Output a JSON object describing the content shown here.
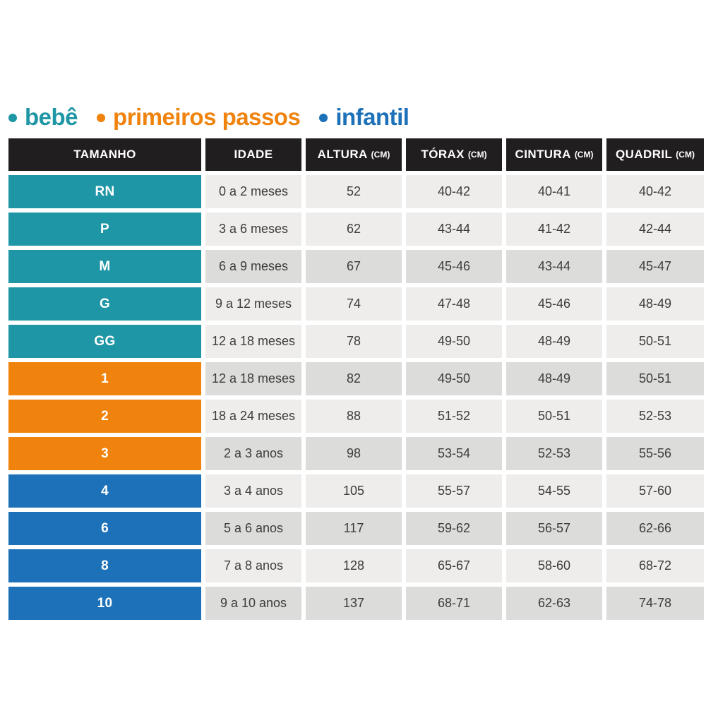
{
  "page": {
    "background": "#ffffff"
  },
  "legend": {
    "items": [
      {
        "id": "bebe",
        "label": "bebê",
        "color": "#1e96a5"
      },
      {
        "id": "primeiros-passos",
        "label": "primeiros passos",
        "color": "#f0830d"
      },
      {
        "id": "infantil",
        "label": "infantil",
        "color": "#1d71b8"
      }
    ]
  },
  "table": {
    "header_bg": "#211e1f",
    "header_text_color": "#ffffff",
    "data_text_color": "#3c3c3b",
    "category_colors": {
      "bebe": "#1e96a5",
      "primeiros-passos": "#f0830d",
      "infantil": "#1d71b8"
    },
    "tone_colors": {
      "light": "#eeedeb",
      "dark": "#dcdcda"
    },
    "headers": [
      {
        "label": "TAMANHO",
        "unit": ""
      },
      {
        "label": "IDADE",
        "unit": ""
      },
      {
        "label": "ALTURA",
        "unit": "(CM)"
      },
      {
        "label": "TÓRAX",
        "unit": "(CM)"
      },
      {
        "label": "CINTURA",
        "unit": "(CM)"
      },
      {
        "label": "QUADRIL",
        "unit": "(CM)"
      }
    ],
    "rows": [
      {
        "size": "RN",
        "category": "bebe",
        "tone": "light",
        "idade": "0 a 2 meses",
        "altura": "52",
        "torax": "40-42",
        "cintura": "40-41",
        "quadril": "40-42"
      },
      {
        "size": "P",
        "category": "bebe",
        "tone": "light",
        "idade": "3 a 6 meses",
        "altura": "62",
        "torax": "43-44",
        "cintura": "41-42",
        "quadril": "42-44"
      },
      {
        "size": "M",
        "category": "bebe",
        "tone": "dark",
        "idade": "6 a 9 meses",
        "altura": "67",
        "torax": "45-46",
        "cintura": "43-44",
        "quadril": "45-47"
      },
      {
        "size": "G",
        "category": "bebe",
        "tone": "light",
        "idade": "9 a 12 meses",
        "altura": "74",
        "torax": "47-48",
        "cintura": "45-46",
        "quadril": "48-49"
      },
      {
        "size": "GG",
        "category": "bebe",
        "tone": "light",
        "idade": "12 a 18 meses",
        "altura": "78",
        "torax": "49-50",
        "cintura": "48-49",
        "quadril": "50-51"
      },
      {
        "size": "1",
        "category": "primeiros-passos",
        "tone": "dark",
        "idade": "12 a 18 meses",
        "altura": "82",
        "torax": "49-50",
        "cintura": "48-49",
        "quadril": "50-51"
      },
      {
        "size": "2",
        "category": "primeiros-passos",
        "tone": "light",
        "idade": "18 a 24 meses",
        "altura": "88",
        "torax": "51-52",
        "cintura": "50-51",
        "quadril": "52-53"
      },
      {
        "size": "3",
        "category": "primeiros-passos",
        "tone": "dark",
        "idade": "2 a 3 anos",
        "altura": "98",
        "torax": "53-54",
        "cintura": "52-53",
        "quadril": "55-56"
      },
      {
        "size": "4",
        "category": "infantil",
        "tone": "light",
        "idade": "3 a 4 anos",
        "altura": "105",
        "torax": "55-57",
        "cintura": "54-55",
        "quadril": "57-60"
      },
      {
        "size": "6",
        "category": "infantil",
        "tone": "dark",
        "idade": "5 a 6 anos",
        "altura": "117",
        "torax": "59-62",
        "cintura": "56-57",
        "quadril": "62-66"
      },
      {
        "size": "8",
        "category": "infantil",
        "tone": "light",
        "idade": "7 a 8 anos",
        "altura": "128",
        "torax": "65-67",
        "cintura": "58-60",
        "quadril": "68-72"
      },
      {
        "size": "10",
        "category": "infantil",
        "tone": "dark",
        "idade": "9 a 10 anos",
        "altura": "137",
        "torax": "68-71",
        "cintura": "62-63",
        "quadril": "74-78"
      }
    ]
  },
  "chart_data": {
    "type": "table",
    "title": "",
    "columns": [
      "TAMANHO",
      "IDADE",
      "ALTURA (CM)",
      "TÓRAX (CM)",
      "CINTURA (CM)",
      "QUADRIL (CM)"
    ],
    "rows": [
      [
        "RN",
        "0 a 2 meses",
        "52",
        "40-42",
        "40-41",
        "40-42"
      ],
      [
        "P",
        "3 a 6 meses",
        "62",
        "43-44",
        "41-42",
        "42-44"
      ],
      [
        "M",
        "6 a 9 meses",
        "67",
        "45-46",
        "43-44",
        "45-47"
      ],
      [
        "G",
        "9 a 12 meses",
        "74",
        "47-48",
        "45-46",
        "48-49"
      ],
      [
        "GG",
        "12 a 18 meses",
        "78",
        "49-50",
        "48-49",
        "50-51"
      ],
      [
        "1",
        "12 a 18 meses",
        "82",
        "49-50",
        "48-49",
        "50-51"
      ],
      [
        "2",
        "18 a 24 meses",
        "88",
        "51-52",
        "50-51",
        "52-53"
      ],
      [
        "3",
        "2 a 3 anos",
        "98",
        "53-54",
        "52-53",
        "55-56"
      ],
      [
        "4",
        "3 a 4 anos",
        "105",
        "55-57",
        "54-55",
        "57-60"
      ],
      [
        "6",
        "5 a 6 anos",
        "117",
        "59-62",
        "56-57",
        "62-66"
      ],
      [
        "8",
        "7 a 8 anos",
        "128",
        "65-67",
        "58-60",
        "68-72"
      ],
      [
        "10",
        "9 a 10 anos",
        "137",
        "68-71",
        "62-63",
        "74-78"
      ]
    ],
    "groups": [
      {
        "name": "bebê",
        "color": "#1e96a5",
        "sizes": [
          "RN",
          "P",
          "M",
          "G",
          "GG"
        ]
      },
      {
        "name": "primeiros passos",
        "color": "#f0830d",
        "sizes": [
          "1",
          "2",
          "3"
        ]
      },
      {
        "name": "infantil",
        "color": "#1d71b8",
        "sizes": [
          "4",
          "6",
          "8",
          "10"
        ]
      }
    ],
    "layout": {
      "legend_position": "top-left",
      "grid": false
    }
  }
}
